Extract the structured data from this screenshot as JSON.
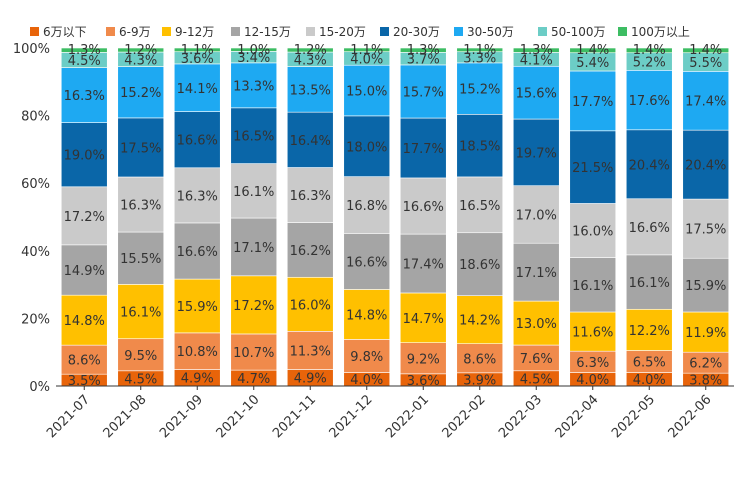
{
  "chart_data": {
    "type": "bar",
    "stacked": true,
    "normalized": true,
    "title": "",
    "xlabel": "",
    "ylabel": "",
    "ylim": [
      0,
      100
    ],
    "y_ticks": [
      "0%",
      "20%",
      "40%",
      "60%",
      "80%",
      "100%"
    ],
    "legend_position": "top",
    "categories": [
      "2021-07",
      "2021-08",
      "2021-09",
      "2021-10",
      "2021-11",
      "2021-12",
      "2022-01",
      "2022-02",
      "2022-03",
      "2022-04",
      "2022-05",
      "2022-06"
    ],
    "series": [
      {
        "name": "6万以下",
        "color": "#e8640a",
        "values": [
          3.5,
          4.5,
          4.9,
          4.7,
          4.9,
          4.0,
          3.6,
          3.9,
          4.5,
          4.0,
          4.0,
          3.8
        ]
      },
      {
        "name": "6-9万",
        "color": "#f08a4b",
        "values": [
          8.6,
          9.5,
          10.8,
          10.7,
          11.3,
          9.8,
          9.2,
          8.6,
          7.6,
          6.3,
          6.5,
          6.2
        ]
      },
      {
        "name": "9-12万",
        "color": "#ffc000",
        "values": [
          14.8,
          16.1,
          15.9,
          17.2,
          16.0,
          14.8,
          14.7,
          14.2,
          13.0,
          11.6,
          12.2,
          11.9
        ]
      },
      {
        "name": "12-15万",
        "color": "#a5a5a5",
        "values": [
          14.9,
          15.5,
          16.6,
          17.1,
          16.2,
          16.6,
          17.4,
          18.6,
          17.1,
          16.1,
          16.1,
          15.9
        ]
      },
      {
        "name": "15-20万",
        "color": "#cacaca",
        "values": [
          17.2,
          16.3,
          16.3,
          16.1,
          16.3,
          16.8,
          16.6,
          16.5,
          17.0,
          16.0,
          16.6,
          17.5
        ]
      },
      {
        "name": "20-30万",
        "color": "#0a66a8",
        "values": [
          19.0,
          17.5,
          16.6,
          16.5,
          16.4,
          18.0,
          17.7,
          18.5,
          19.7,
          21.5,
          20.4,
          20.4
        ]
      },
      {
        "name": "30-50万",
        "color": "#1ea9f2",
        "values": [
          16.3,
          15.2,
          14.1,
          13.3,
          13.5,
          15.0,
          15.7,
          15.2,
          15.6,
          17.7,
          17.6,
          17.4
        ]
      },
      {
        "name": "50-100万",
        "color": "#6ccdc6",
        "values": [
          4.5,
          4.3,
          3.6,
          3.4,
          4.3,
          4.0,
          3.7,
          3.3,
          4.1,
          5.4,
          5.2,
          5.5
        ]
      },
      {
        "name": "100万以上",
        "color": "#3dbd63",
        "values": [
          1.3,
          1.2,
          1.1,
          1.0,
          1.2,
          1.1,
          1.3,
          1.1,
          1.3,
          1.4,
          1.4,
          1.4
        ]
      }
    ]
  }
}
